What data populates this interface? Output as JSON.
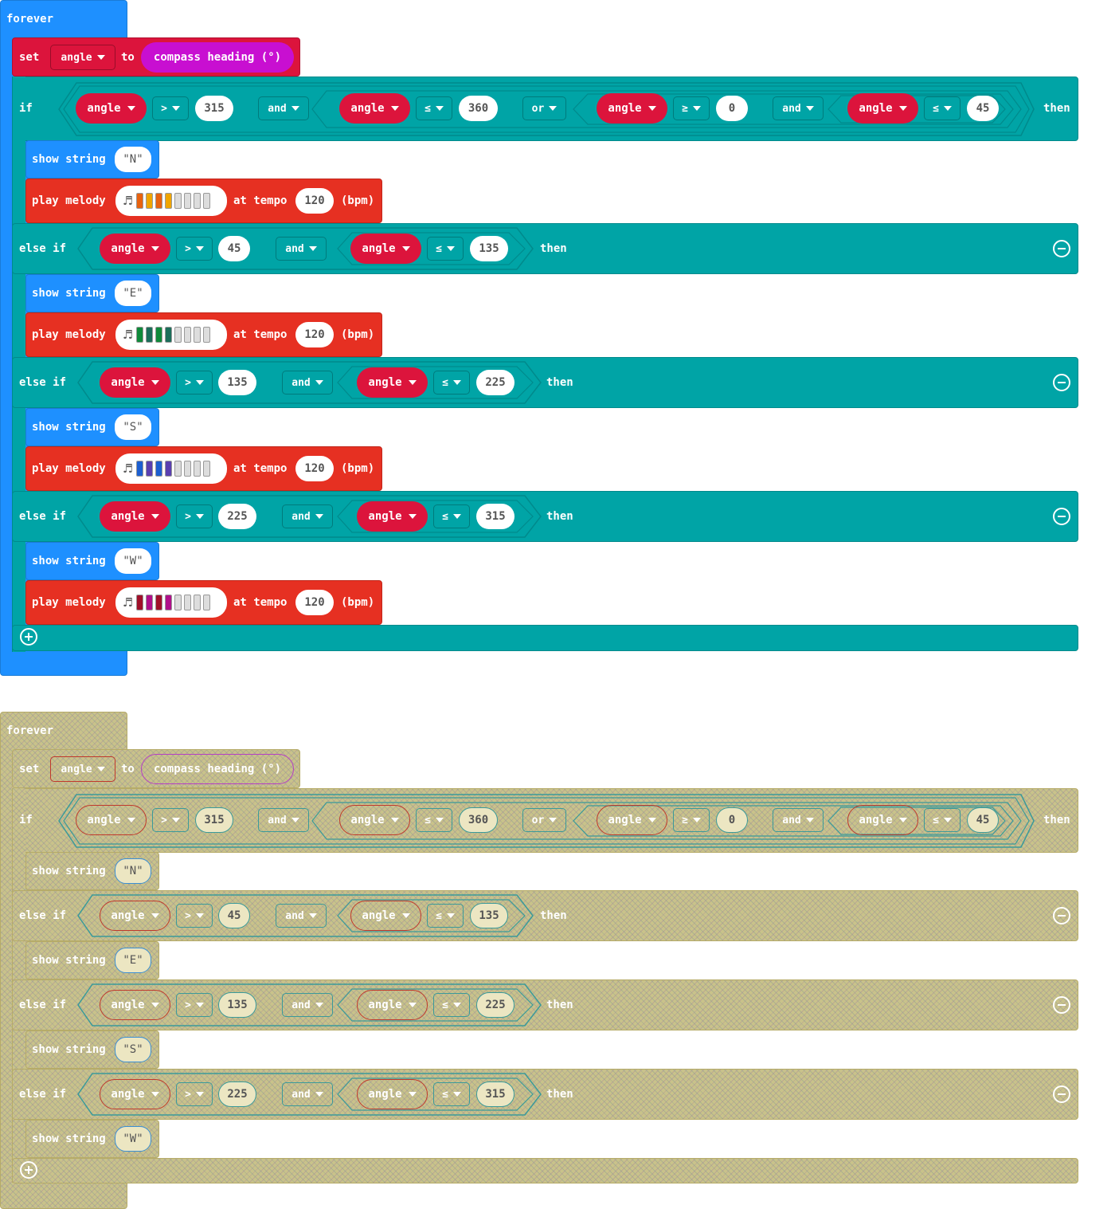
{
  "blocks": {
    "forever_label": "forever",
    "set_label": "set",
    "var_name": "angle",
    "to_label": "to",
    "compass_label": "compass heading (°)",
    "if_label": "if",
    "else_if_label": "else if",
    "then_label": "then",
    "and_label": "and",
    "or_label": "or",
    "gt": ">",
    "le": "≤",
    "ge": "≥",
    "show_string_label": "show string",
    "play_melody_label": "play melody",
    "at_tempo_label": "at tempo",
    "bpm_label": "(bpm)",
    "tempo": "120"
  },
  "if_condition": {
    "a": "315",
    "b": "360",
    "c": "0",
    "d": "45"
  },
  "branches": [
    {
      "string": "\"N\"",
      "lo": "",
      "hi": "",
      "melody_colors": [
        "#e8620f",
        "#f0a500",
        "#e8620f",
        "#f0a500",
        "#dddddd",
        "#dddddd",
        "#dddddd",
        "#dddddd"
      ]
    },
    {
      "string": "\"E\"",
      "lo": "45",
      "hi": "135",
      "melody_colors": [
        "#0f8a3a",
        "#1b6e5a",
        "#0f8a3a",
        "#1b6e5a",
        "#dddddd",
        "#dddddd",
        "#dddddd",
        "#dddddd"
      ]
    },
    {
      "string": "\"S\"",
      "lo": "135",
      "hi": "225",
      "melody_colors": [
        "#1c5fd1",
        "#5a3fb0",
        "#1c5fd1",
        "#5a3fb0",
        "#dddddd",
        "#dddddd",
        "#dddddd",
        "#dddddd"
      ]
    },
    {
      "string": "\"W\"",
      "lo": "225",
      "hi": "315",
      "melody_colors": [
        "#a0102a",
        "#b0108a",
        "#a0102a",
        "#b0108a",
        "#dddddd",
        "#dddddd",
        "#dddddd",
        "#dddddd"
      ]
    }
  ],
  "colors": {
    "forever": "#1e90ff",
    "set": "#dc143c",
    "compass": "#c80fd1",
    "logic": "#00a4a6",
    "variable": "#dc143c",
    "music": "#e63022",
    "disabled": "#c9c28a"
  }
}
